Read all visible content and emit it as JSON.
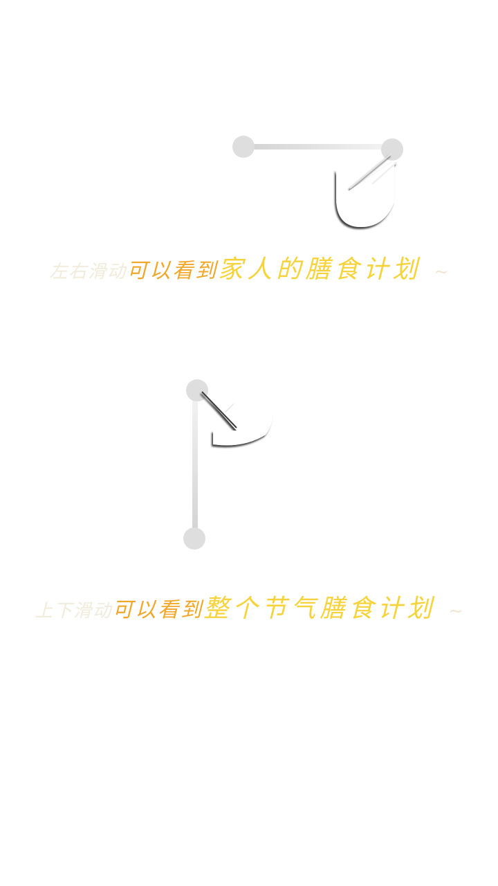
{
  "guide_1": {
    "gesture": "swipe-left-right",
    "hint_faint": "左右滑动",
    "hint_orange": "可以看到",
    "hint_yellow": "家人的膳食计划",
    "hint_tilde": "~"
  },
  "guide_2": {
    "gesture": "swipe-up-down",
    "hint_faint": "上下滑动",
    "hint_orange": "可以看到",
    "hint_yellow": "整个节气膳食计划",
    "hint_tilde": "~"
  },
  "colors": {
    "background": "#ffffff",
    "track": "#dcdcdc",
    "hint_faint": "#f1ebdc",
    "hint_orange": "#f0a72a",
    "hint_yellow": "#f6d33a"
  },
  "icons": [
    "swipe-horizontal-hand-icon",
    "swipe-vertical-hand-icon"
  ]
}
